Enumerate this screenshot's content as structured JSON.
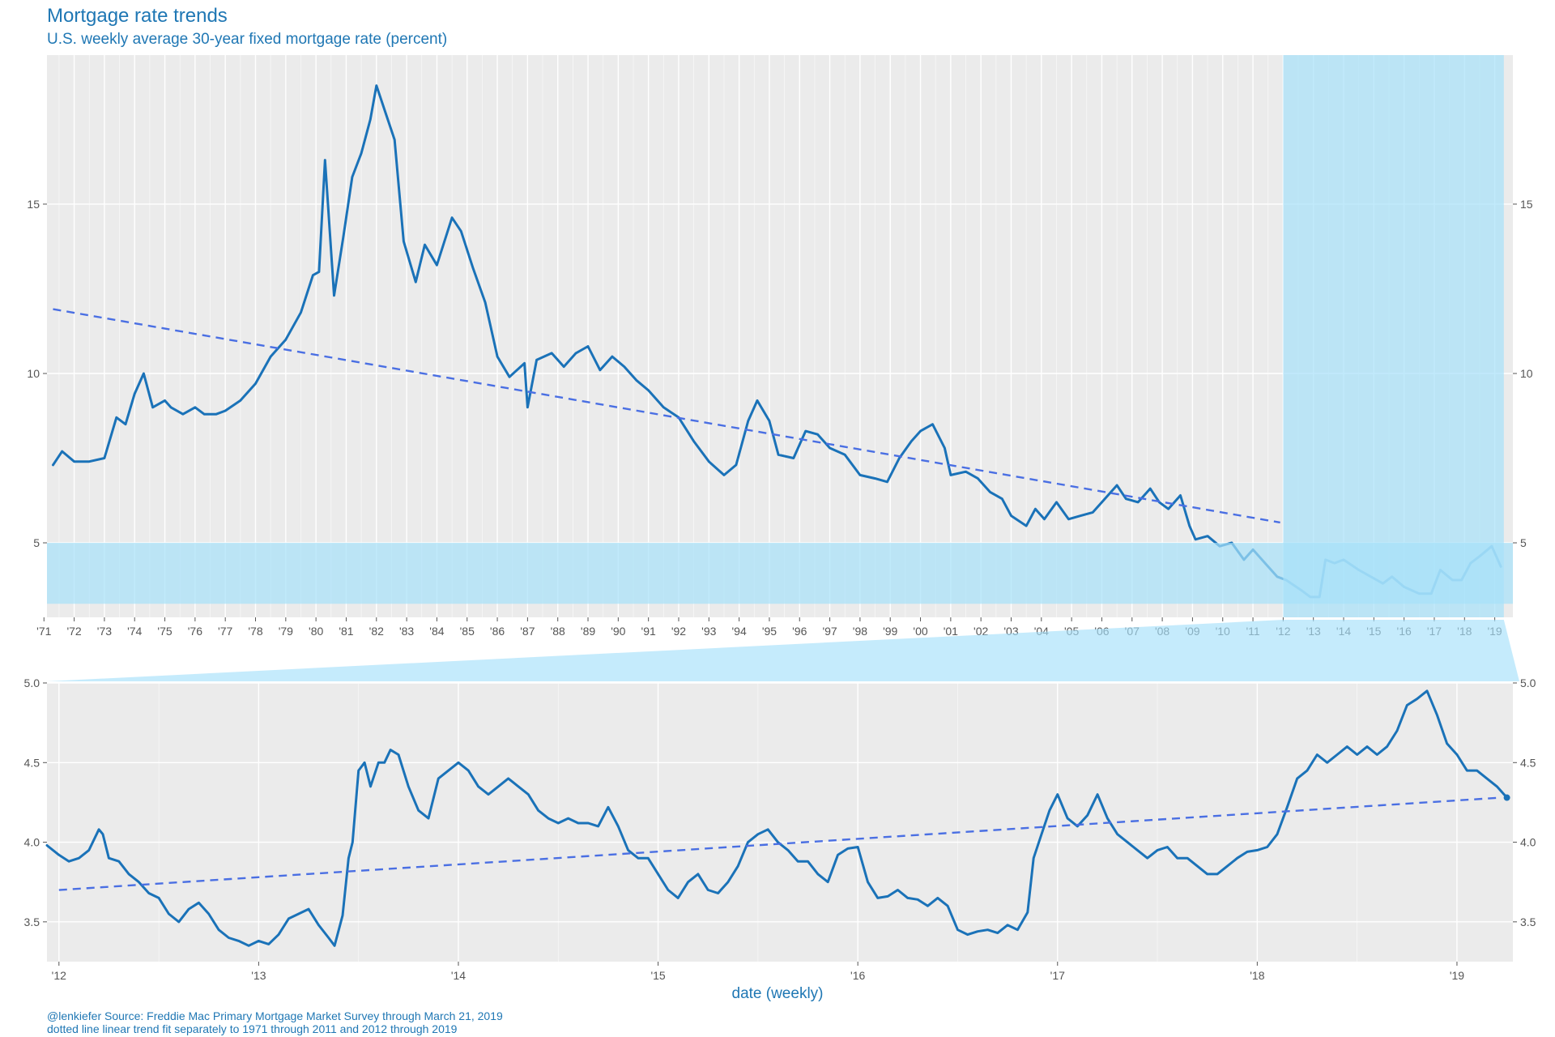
{
  "header": {
    "title": "Mortgage rate trends",
    "subtitle": "U.S. weekly average 30-year fixed mortgage rate (percent)"
  },
  "footer": {
    "caption_line1": "@lenkiefer Source: Freddie Mac Primary Mortgage Market Survey through March 21, 2019",
    "caption_line2": "dotted line linear trend fit separately to 1971 through 2011 and 2012 through 2019"
  },
  "colors": {
    "series": "#1a72b8",
    "trend": "#4a6fe3",
    "panel_bg": "#ebebeb",
    "grid": "#ffffff",
    "highlight": "#a6e1fa",
    "text_blue": "#1f77b4"
  },
  "chart_data": [
    {
      "type": "line",
      "panel": "full history",
      "title": "Mortgage rate trends",
      "subtitle": "U.S. weekly average 30-year fixed mortgage rate (percent)",
      "xlim": [
        1971.1,
        2019.6
      ],
      "ylim": [
        2.8,
        19.4
      ],
      "y_ticks": [
        5,
        10,
        15
      ],
      "y_tick_labels": [
        "5",
        "10",
        "15"
      ],
      "x_ticks": [
        1971,
        1972,
        1973,
        1974,
        1975,
        1976,
        1977,
        1978,
        1979,
        1980,
        1981,
        1982,
        1983,
        1984,
        1985,
        1986,
        1987,
        1988,
        1989,
        1990,
        1991,
        1992,
        1993,
        1994,
        1995,
        1996,
        1997,
        1998,
        1999,
        2000,
        2001,
        2002,
        2003,
        2004,
        2005,
        2006,
        2007,
        2008,
        2009,
        2010,
        2011,
        2012,
        2013,
        2014,
        2015,
        2016,
        2017,
        2018,
        2019
      ],
      "x_tick_labels": [
        "'71",
        "'72",
        "'73",
        "'74",
        "'75",
        "'76",
        "'77",
        "'78",
        "'79",
        "'80",
        "'81",
        "'82",
        "'83",
        "'84",
        "'85",
        "'86",
        "'87",
        "'88",
        "'89",
        "'90",
        "'91",
        "'92",
        "'93",
        "'94",
        "'95",
        "'96",
        "'97",
        "'98",
        "'99",
        "'00",
        "'01",
        "'02",
        "'03",
        "'04",
        "'05",
        "'06",
        "'07",
        "'08",
        "'09",
        "'10",
        "'11",
        "'12",
        "'13",
        "'14",
        "'15",
        "'16",
        "'17",
        "'18",
        "'19"
      ],
      "grid": true,
      "highlight_regions": {
        "x_from": 2012.0,
        "x_to": 2019.3,
        "y_from": 3.2,
        "y_to": 5.0
      },
      "series": [
        {
          "x": [
            1971.3,
            1971.6,
            1972.0,
            1972.5,
            1973.0,
            1973.4,
            1973.7,
            1974.0,
            1974.3,
            1974.6,
            1975.0,
            1975.2,
            1975.6,
            1976.0,
            1976.3,
            1976.7,
            1977.0,
            1977.5,
            1978.0,
            1978.5,
            1979.0,
            1979.5,
            1979.9,
            1980.1,
            1980.3,
            1980.6,
            1980.9,
            1981.2,
            1981.5,
            1981.8,
            1982.0,
            1982.3,
            1982.6,
            1982.9,
            1983.3,
            1983.6,
            1984.0,
            1984.5,
            1984.8,
            1985.2,
            1985.6,
            1986.0,
            1986.4,
            1986.9,
            1987.0,
            1987.3,
            1987.8,
            1988.2,
            1988.6,
            1989.0,
            1989.4,
            1989.8,
            1990.2,
            1990.6,
            1991.0,
            1991.5,
            1992.0,
            1992.5,
            1993.0,
            1993.5,
            1993.9,
            1994.3,
            1994.6,
            1995.0,
            1995.3,
            1995.8,
            1996.2,
            1996.6,
            1997.0,
            1997.5,
            1998.0,
            1998.5,
            1998.9,
            1999.3,
            1999.7,
            2000.0,
            2000.4,
            2000.8,
            2001.0,
            2001.5,
            2001.9,
            2002.3,
            2002.7,
            2003.0,
            2003.5,
            2003.8,
            2004.1,
            2004.5,
            2004.9,
            2005.3,
            2005.7,
            2006.0,
            2006.5,
            2006.8,
            2007.2,
            2007.6,
            2007.9,
            2008.2,
            2008.6,
            2008.9,
            2009.1,
            2009.5,
            2009.9,
            2010.3,
            2010.7,
            2011.0,
            2011.4,
            2011.8,
            2012.1,
            2012.6,
            2012.9,
            2013.2,
            2013.4,
            2013.7,
            2014.0,
            2014.5,
            2014.9,
            2015.3,
            2015.6,
            2016.0,
            2016.5,
            2016.9,
            2017.2,
            2017.6,
            2017.9,
            2018.2,
            2018.5,
            2018.9,
            2019.2
          ],
          "y": [
            7.3,
            7.7,
            7.4,
            7.4,
            7.5,
            8.7,
            8.5,
            9.4,
            10.0,
            9.0,
            9.2,
            9.0,
            8.8,
            9.0,
            8.8,
            8.8,
            8.9,
            9.2,
            9.7,
            10.5,
            11.0,
            11.8,
            12.9,
            13.0,
            16.3,
            12.3,
            14.0,
            15.8,
            16.5,
            17.5,
            18.5,
            17.7,
            16.9,
            13.9,
            12.7,
            13.8,
            13.2,
            14.6,
            14.2,
            13.1,
            12.1,
            10.5,
            9.9,
            10.3,
            9.0,
            10.4,
            10.6,
            10.2,
            10.6,
            10.8,
            10.1,
            10.5,
            10.2,
            9.8,
            9.5,
            9.0,
            8.7,
            8.0,
            7.4,
            7.0,
            7.3,
            8.6,
            9.2,
            8.6,
            7.6,
            7.5,
            8.3,
            8.2,
            7.8,
            7.6,
            7.0,
            6.9,
            6.8,
            7.5,
            8.0,
            8.3,
            8.5,
            7.8,
            7.0,
            7.1,
            6.9,
            6.5,
            6.3,
            5.8,
            5.5,
            6.0,
            5.7,
            6.2,
            5.7,
            5.8,
            5.9,
            6.2,
            6.7,
            6.3,
            6.2,
            6.6,
            6.2,
            6.0,
            6.4,
            5.5,
            5.1,
            5.2,
            4.9,
            5.0,
            4.5,
            4.8,
            4.4,
            4.0,
            3.9,
            3.6,
            3.4,
            3.4,
            4.5,
            4.4,
            4.5,
            4.2,
            4.0,
            3.8,
            4.0,
            3.7,
            3.5,
            3.5,
            4.2,
            3.9,
            3.9,
            4.4,
            4.6,
            4.9,
            4.3
          ]
        }
      ],
      "trend_segment": {
        "x": [
          1971.3,
          2011.9
        ],
        "y": [
          11.9,
          5.6
        ]
      }
    },
    {
      "type": "line",
      "panel": "2012 through 2019 detail",
      "xlabel": "date (weekly)",
      "xlim": [
        2011.94,
        2019.28
      ],
      "ylim": [
        3.25,
        5.0
      ],
      "y_ticks": [
        3.5,
        4.0,
        4.5,
        5.0
      ],
      "y_tick_labels": [
        "3.5",
        "4.0",
        "4.5",
        "5.0"
      ],
      "x_ticks": [
        2012,
        2013,
        2014,
        2015,
        2016,
        2017,
        2018,
        2019
      ],
      "x_tick_labels": [
        "'12",
        "'13",
        "'14",
        "'15",
        "'16",
        "'17",
        "'18",
        "'19"
      ],
      "grid": true,
      "series": [
        {
          "x": [
            2011.94,
            2012.0,
            2012.05,
            2012.1,
            2012.15,
            2012.2,
            2012.22,
            2012.25,
            2012.3,
            2012.35,
            2012.4,
            2012.45,
            2012.5,
            2012.55,
            2012.6,
            2012.65,
            2012.7,
            2012.75,
            2012.8,
            2012.85,
            2012.9,
            2012.95,
            2013.0,
            2013.05,
            2013.1,
            2013.15,
            2013.2,
            2013.25,
            2013.3,
            2013.35,
            2013.38,
            2013.42,
            2013.45,
            2013.47,
            2013.5,
            2013.53,
            2013.56,
            2013.6,
            2013.63,
            2013.66,
            2013.7,
            2013.75,
            2013.8,
            2013.85,
            2013.9,
            2013.95,
            2014.0,
            2014.05,
            2014.1,
            2014.15,
            2014.2,
            2014.25,
            2014.3,
            2014.35,
            2014.4,
            2014.45,
            2014.5,
            2014.55,
            2014.6,
            2014.65,
            2014.7,
            2014.75,
            2014.8,
            2014.85,
            2014.9,
            2014.95,
            2015.0,
            2015.05,
            2015.1,
            2015.15,
            2015.2,
            2015.25,
            2015.3,
            2015.35,
            2015.4,
            2015.45,
            2015.5,
            2015.55,
            2015.6,
            2015.65,
            2015.7,
            2015.75,
            2015.8,
            2015.85,
            2015.9,
            2015.95,
            2016.0,
            2016.05,
            2016.1,
            2016.15,
            2016.2,
            2016.25,
            2016.3,
            2016.35,
            2016.4,
            2016.45,
            2016.5,
            2016.55,
            2016.6,
            2016.65,
            2016.7,
            2016.75,
            2016.8,
            2016.85,
            2016.88,
            2016.92,
            2016.96,
            2017.0,
            2017.05,
            2017.1,
            2017.15,
            2017.2,
            2017.25,
            2017.3,
            2017.35,
            2017.4,
            2017.45,
            2017.5,
            2017.55,
            2017.6,
            2017.65,
            2017.7,
            2017.75,
            2017.8,
            2017.85,
            2017.9,
            2017.95,
            2018.0,
            2018.05,
            2018.1,
            2018.15,
            2018.2,
            2018.25,
            2018.3,
            2018.35,
            2018.4,
            2018.45,
            2018.5,
            2018.55,
            2018.6,
            2018.65,
            2018.7,
            2018.75,
            2018.8,
            2018.85,
            2018.9,
            2018.95,
            2019.0,
            2019.05,
            2019.1,
            2019.15,
            2019.2,
            2019.25
          ],
          "y": [
            3.98,
            3.92,
            3.88,
            3.9,
            3.95,
            4.08,
            4.05,
            3.9,
            3.88,
            3.8,
            3.75,
            3.68,
            3.65,
            3.55,
            3.5,
            3.58,
            3.62,
            3.55,
            3.45,
            3.4,
            3.38,
            3.35,
            3.38,
            3.36,
            3.42,
            3.52,
            3.55,
            3.58,
            3.48,
            3.4,
            3.35,
            3.54,
            3.9,
            4.0,
            4.45,
            4.5,
            4.35,
            4.5,
            4.5,
            4.58,
            4.55,
            4.35,
            4.2,
            4.15,
            4.4,
            4.45,
            4.5,
            4.45,
            4.35,
            4.3,
            4.35,
            4.4,
            4.35,
            4.3,
            4.2,
            4.15,
            4.12,
            4.15,
            4.12,
            4.12,
            4.1,
            4.22,
            4.1,
            3.95,
            3.9,
            3.9,
            3.8,
            3.7,
            3.65,
            3.75,
            3.8,
            3.7,
            3.68,
            3.75,
            3.85,
            4.0,
            4.05,
            4.08,
            4.0,
            3.95,
            3.88,
            3.88,
            3.8,
            3.75,
            3.92,
            3.96,
            3.97,
            3.75,
            3.65,
            3.66,
            3.7,
            3.65,
            3.64,
            3.6,
            3.65,
            3.6,
            3.45,
            3.42,
            3.44,
            3.45,
            3.43,
            3.48,
            3.45,
            3.56,
            3.9,
            4.05,
            4.2,
            4.3,
            4.15,
            4.1,
            4.17,
            4.3,
            4.15,
            4.05,
            4.0,
            3.95,
            3.9,
            3.95,
            3.97,
            3.9,
            3.9,
            3.85,
            3.8,
            3.8,
            3.85,
            3.9,
            3.94,
            3.95,
            3.97,
            4.05,
            4.22,
            4.4,
            4.45,
            4.55,
            4.5,
            4.55,
            4.6,
            4.55,
            4.6,
            4.55,
            4.6,
            4.7,
            4.86,
            4.9,
            4.95,
            4.8,
            4.62,
            4.55,
            4.45,
            4.45,
            4.4,
            4.35,
            4.28
          ]
        }
      ],
      "trend_segment": {
        "x": [
          2012.0,
          2019.22
        ],
        "y": [
          3.7,
          4.28
        ]
      }
    }
  ]
}
